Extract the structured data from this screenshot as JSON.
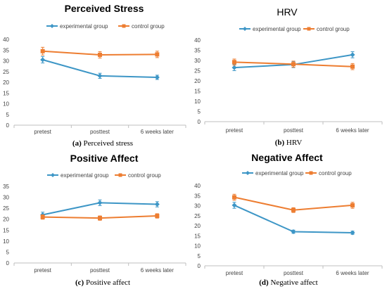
{
  "colors": {
    "experimental": "#3d96c6",
    "control": "#ed7d31",
    "axis": "#bfbfbf"
  },
  "chart_data": [
    {
      "type": "line",
      "title": "Perceived Stress",
      "caption_letter": "(a)",
      "caption_text": "Perceived stress",
      "categories": [
        "pretest",
        "posttest",
        "6 weeks later"
      ],
      "ylim": [
        0,
        40
      ],
      "yticks": [
        0,
        5,
        10,
        15,
        20,
        25,
        30,
        35,
        40
      ],
      "legend": "top",
      "series": [
        {
          "name": "experimental group",
          "values": [
            30.5,
            23,
            22.3
          ],
          "errors": [
            1.5,
            1.2,
            1.0
          ]
        },
        {
          "name": "control group",
          "values": [
            34.5,
            32.8,
            33
          ],
          "errors": [
            1.8,
            1.5,
            1.5
          ]
        }
      ]
    },
    {
      "type": "line",
      "title": "HRV",
      "caption_letter": "(b)",
      "caption_text": "HRV",
      "categories": [
        "pretest",
        "posttest",
        "6 weeks later"
      ],
      "ylim": [
        0,
        40
      ],
      "yticks": [
        0,
        5,
        10,
        15,
        20,
        25,
        30,
        35,
        40
      ],
      "legend": "top",
      "series": [
        {
          "name": "experimental group",
          "values": [
            26.5,
            28,
            32.8
          ],
          "errors": [
            1.5,
            1.5,
            1.5
          ]
        },
        {
          "name": "control group",
          "values": [
            29.2,
            28.2,
            27
          ],
          "errors": [
            1.5,
            1.5,
            1.5
          ]
        }
      ]
    },
    {
      "type": "line",
      "title": "Positive Affect",
      "caption_letter": "(c)",
      "caption_text": "Positive affect",
      "categories": [
        "pretest",
        "posttest",
        "6 weeks later"
      ],
      "ylim": [
        0,
        35
      ],
      "yticks": [
        0,
        5,
        10,
        15,
        20,
        25,
        30,
        35
      ],
      "legend": "top",
      "series": [
        {
          "name": "experimental group",
          "values": [
            22,
            27.5,
            26.8
          ],
          "errors": [
            1.2,
            1.3,
            1.2
          ]
        },
        {
          "name": "control group",
          "values": [
            21,
            20.5,
            21.5
          ],
          "errors": [
            1.0,
            1.0,
            1.0
          ]
        }
      ]
    },
    {
      "type": "line",
      "title": "Negative Affect",
      "caption_letter": "(d)",
      "caption_text": "Negative affect",
      "categories": [
        "pretest",
        "posttest",
        "6 weeks later"
      ],
      "ylim": [
        0,
        40
      ],
      "yticks": [
        0,
        5,
        10,
        15,
        20,
        25,
        30,
        35,
        40
      ],
      "legend": "top",
      "series": [
        {
          "name": "experimental group",
          "values": [
            30.2,
            17,
            16.5
          ],
          "errors": [
            1.5,
            0.8,
            0.8
          ]
        },
        {
          "name": "control group",
          "values": [
            34.2,
            27.8,
            30.2
          ],
          "errors": [
            1.5,
            1.2,
            1.5
          ]
        }
      ]
    }
  ]
}
